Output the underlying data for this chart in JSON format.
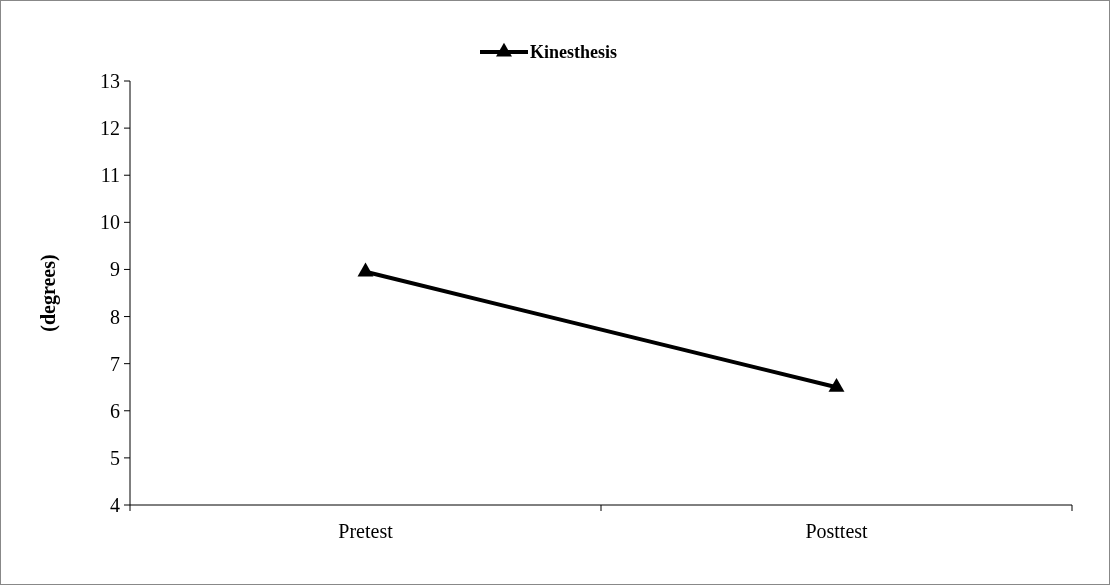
{
  "chart_data": {
    "type": "line",
    "ylabel": "(degrees)",
    "categories": [
      "Pretest",
      "Posttest"
    ],
    "series": [
      {
        "name": "Kinesthesis",
        "color": "#000000",
        "values": [
          8.95,
          6.5
        ]
      }
    ],
    "ylim": [
      4,
      13
    ],
    "yticks": [
      4,
      5,
      6,
      7,
      8,
      9,
      10,
      11,
      12,
      13
    ],
    "grid": false,
    "legend": "top",
    "marker": "triangle",
    "line_style": "solid"
  }
}
